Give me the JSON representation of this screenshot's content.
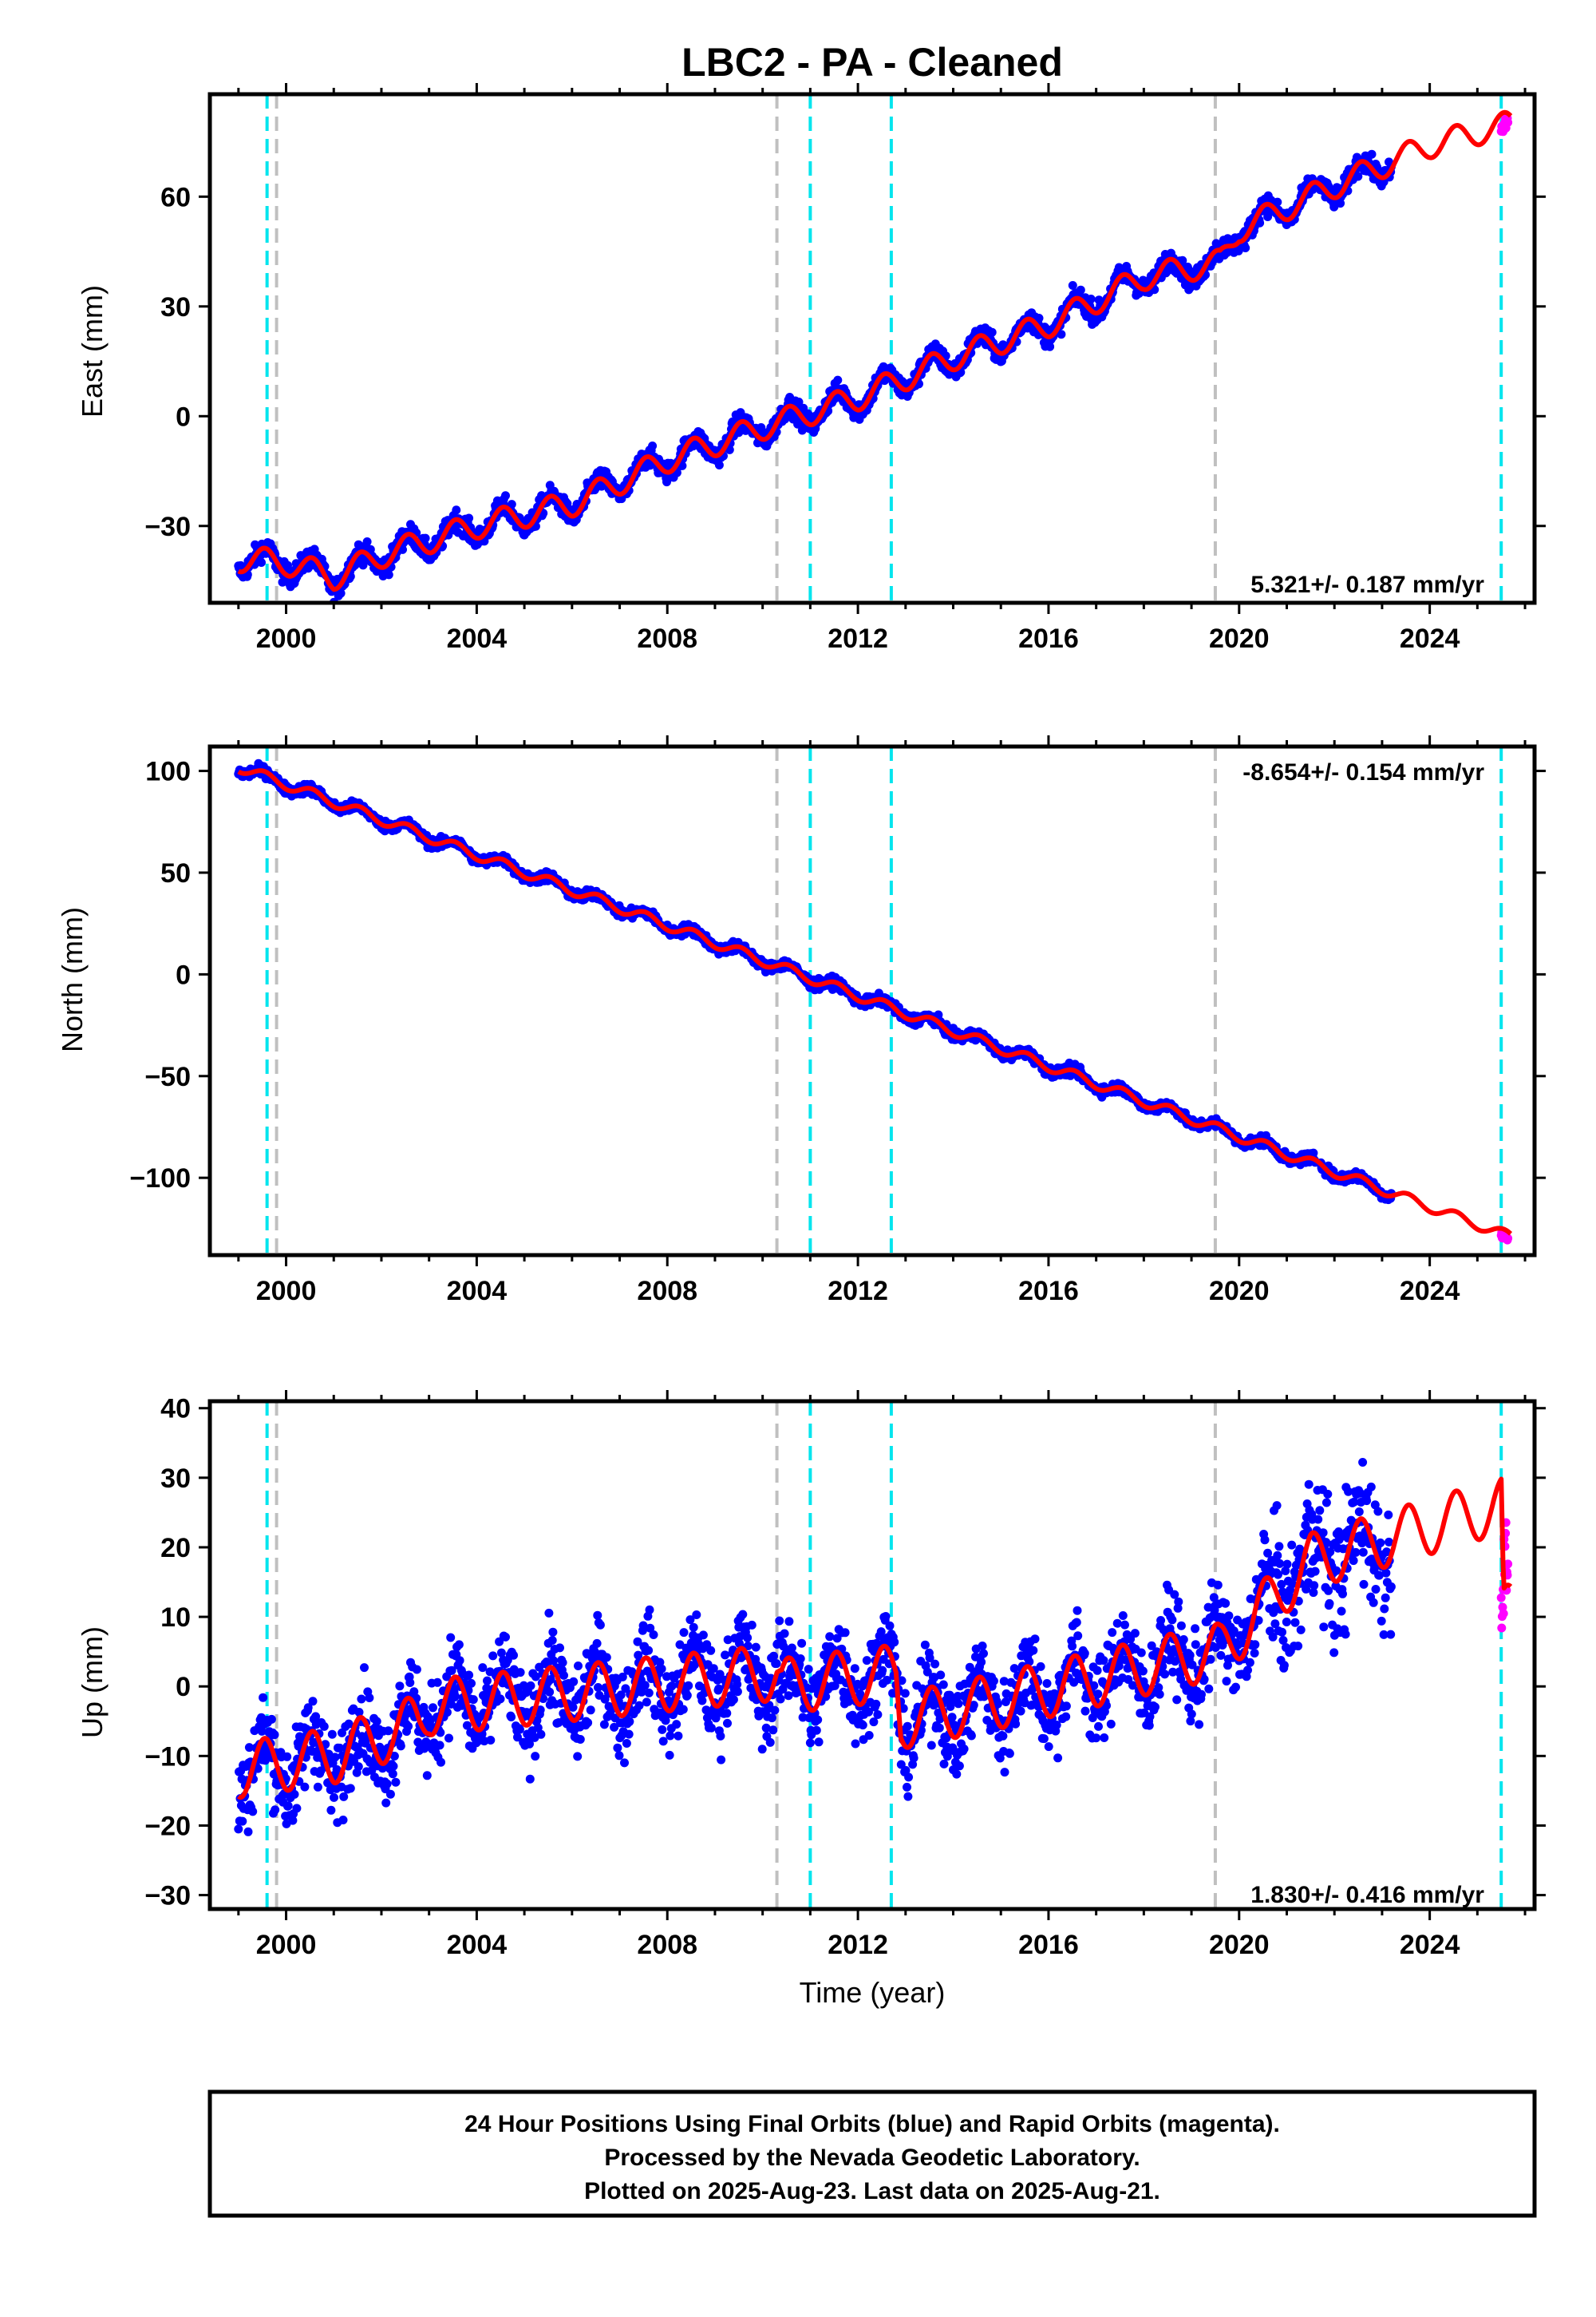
{
  "title": "LBC2  - PA - Cleaned",
  "xlabel": "Time (year)",
  "footer": {
    "line1": "24 Hour Positions Using Final Orbits (blue) and Rapid Orbits (magenta).",
    "line2": "Processed by the Nevada Geodetic Laboratory.",
    "line3": "Plotted on 2025-Aug-23. Last data on 2025-Aug-21."
  },
  "colors": {
    "final_orbits": "#0000ff",
    "rapid_orbits": "#ff00ff",
    "model": "#ff0000",
    "equipment_change": "#00e5ee",
    "earthquake": "#c0c0c0"
  },
  "chart_data": [
    {
      "type": "scatter",
      "component": "East",
      "ylabel": "East (mm)",
      "xlim": [
        1998.4,
        2026.2
      ],
      "ylim": [
        -51,
        88
      ],
      "xticks": [
        "2000",
        "2004",
        "2008",
        "2012",
        "2016",
        "2020",
        "2024"
      ],
      "yticks": [
        "−30",
        "0",
        "30",
        "60"
      ],
      "ytick_values": [
        -30,
        0,
        30,
        60
      ],
      "rate_label": "5.321+/- 0.187 mm/yr",
      "rate_position": "bottom-right",
      "velocity_mm_per_yr": 5.321,
      "series": [
        {
          "name": "Final Orbits (blue)",
          "x_range": [
            1999.0,
            2023.2
          ],
          "trend_start": [
            1999.0,
            -40
          ],
          "trend_end": [
            2023.2,
            68
          ],
          "scatter_sd_mm": 2.0,
          "seasonal_amp_mm": 3
        },
        {
          "name": "Rapid Orbits (magenta)",
          "x_range": [
            2025.5,
            2025.64
          ],
          "trend_start": [
            2025.5,
            78
          ],
          "trend_end": [
            2025.64,
            81
          ]
        },
        {
          "name": "Model",
          "knots": [
            [
              1999.0,
              -39
            ],
            [
              2000.0,
              -40
            ],
            [
              2001.0,
              -44
            ],
            [
              2002.0,
              -38
            ],
            [
              2004.0,
              -30
            ],
            [
              2006.0,
              -24
            ],
            [
              2008.0,
              -12
            ],
            [
              2010.0,
              -3
            ],
            [
              2012.0,
              5
            ],
            [
              2014.0,
              16
            ],
            [
              2016.0,
              25
            ],
            [
              2018.0,
              38
            ],
            [
              2019.6,
              42
            ],
            [
              2020.0,
              51
            ],
            [
              2022.0,
              63
            ],
            [
              2024.0,
              74
            ],
            [
              2025.7,
              80
            ]
          ],
          "seasonal_amp_mm": 3.5
        }
      ]
    },
    {
      "type": "scatter",
      "component": "North",
      "ylabel": "North (mm)",
      "xlim": [
        1998.4,
        2026.2
      ],
      "ylim": [
        -138,
        112
      ],
      "xticks": [
        "2000",
        "2004",
        "2008",
        "2012",
        "2016",
        "2020",
        "2024"
      ],
      "yticks": [
        "100",
        "50",
        "0",
        "−50",
        "−100"
      ],
      "ytick_values": [
        100,
        50,
        0,
        -50,
        -100
      ],
      "rate_label": "-8.654+/- 0.154 mm/yr",
      "rate_position": "top-right",
      "velocity_mm_per_yr": -8.654,
      "series": [
        {
          "name": "Final Orbits (blue)",
          "x_range": [
            1999.0,
            2023.2
          ],
          "trend_start": [
            1999.0,
            102
          ],
          "trend_end": [
            2023.2,
            -112
          ],
          "scatter_sd_mm": 1.8,
          "seasonal_amp_mm": 2
        },
        {
          "name": "Rapid Orbits (magenta)",
          "x_range": [
            2025.5,
            2025.64
          ],
          "trend_start": [
            2025.5,
            -128
          ],
          "trend_end": [
            2025.64,
            -130
          ]
        },
        {
          "name": "Model",
          "knots": [
            [
              1999.0,
              102
            ],
            [
              2025.7,
              -129
            ]
          ],
          "seasonal_amp_mm": 2.5
        }
      ]
    },
    {
      "type": "scatter",
      "component": "Up",
      "ylabel": "Up (mm)",
      "xlim": [
        1998.4,
        2026.2
      ],
      "ylim": [
        -32,
        41
      ],
      "xticks": [
        "2000",
        "2004",
        "2008",
        "2012",
        "2016",
        "2020",
        "2024"
      ],
      "yticks": [
        "40",
        "30",
        "20",
        "10",
        "0",
        "−10",
        "−20",
        "−30"
      ],
      "ytick_values": [
        40,
        30,
        20,
        10,
        0,
        -10,
        -20,
        -30
      ],
      "rate_label": "1.830+/- 0.416 mm/yr",
      "rate_position": "bottom-right",
      "velocity_mm_per_yr": 1.83,
      "series": [
        {
          "name": "Final Orbits (blue)",
          "x_range": [
            1999.0,
            2023.2
          ],
          "scatter_sd_mm": 4.5,
          "seasonal_amp_mm": 4
        },
        {
          "name": "Rapid Orbits (magenta)",
          "x_range": [
            2025.5,
            2025.64
          ],
          "trend_start": [
            2025.5,
            12
          ],
          "trend_end": [
            2025.64,
            20
          ]
        },
        {
          "name": "Model",
          "knots": [
            [
              1999.0,
              -12
            ],
            [
              2001.0,
              -10
            ],
            [
              2002.8,
              -5
            ],
            [
              2003.0,
              -3
            ],
            [
              2010.3,
              2
            ],
            [
              2010.4,
              0
            ],
            [
              2012.8,
              2
            ],
            [
              2012.9,
              -5
            ],
            [
              2015.0,
              -2
            ],
            [
              2019.5,
              5
            ],
            [
              2019.6,
              5
            ],
            [
              2021.5,
              18
            ],
            [
              2025.5,
              26
            ],
            [
              2025.55,
              10
            ],
            [
              2025.7,
              12
            ]
          ],
          "seasonal_amp_mm": 4
        }
      ]
    }
  ],
  "event_lines": [
    {
      "kind": "equipment",
      "year": 1999.6
    },
    {
      "kind": "earthquake",
      "year": 1999.8
    },
    {
      "kind": "earthquake",
      "year": 2010.3
    },
    {
      "kind": "equipment",
      "year": 2011.0
    },
    {
      "kind": "equipment",
      "year": 2012.7
    },
    {
      "kind": "earthquake",
      "year": 2019.5
    },
    {
      "kind": "equipment",
      "year": 2025.5
    }
  ]
}
